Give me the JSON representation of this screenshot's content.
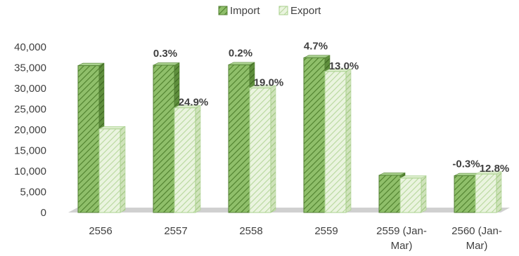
{
  "chart_data": {
    "type": "bar",
    "categories": [
      [
        "2556"
      ],
      [
        "2557"
      ],
      [
        "2558"
      ],
      [
        "2559"
      ],
      [
        "2559 (Jan-",
        "Mar)"
      ],
      [
        "2560 (Jan-",
        "Mar)"
      ]
    ],
    "series": [
      {
        "name": "Import",
        "values": [
          35500,
          35600,
          35700,
          37400,
          9000,
          8900
        ],
        "labels": [
          "",
          "0.3%",
          "0.2%",
          "4.7%",
          "",
          "-0.3%"
        ],
        "color": "#70ad47"
      },
      {
        "name": "Export",
        "values": [
          20200,
          25300,
          30100,
          34100,
          8300,
          9300
        ],
        "labels": [
          "",
          "24.9%",
          "19.0%",
          "13.0%",
          "",
          "12.8%"
        ],
        "color": "#c5e0b4"
      }
    ],
    "ylim": [
      0,
      40000
    ],
    "yticks": [
      "0",
      "5,000",
      "10,000",
      "15,000",
      "20,000",
      "25,000",
      "30,000",
      "35,000",
      "40,000"
    ],
    "ytick_values": [
      0,
      5000,
      10000,
      15000,
      20000,
      25000,
      30000,
      35000,
      40000
    ],
    "legend_position": "top",
    "grid": false,
    "style": "3d-column"
  }
}
